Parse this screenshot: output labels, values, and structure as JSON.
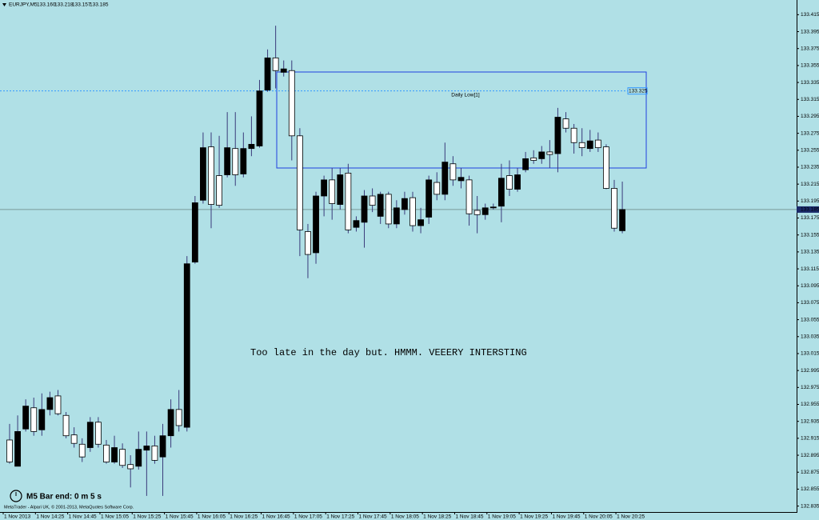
{
  "chart_data": {
    "type": "candlestick",
    "symbol": "EURJPY,M5",
    "header_values": [
      "133.160",
      "133.218",
      "133.157",
      "133.185"
    ],
    "background": "#b0e0e6",
    "bull_color": "#000000",
    "bear_color": "#ffffff",
    "wick_color": "#3a3a7a",
    "categories": [
      "1 Nov 2013",
      null,
      null,
      null,
      "1 Nov 14:25",
      null,
      null,
      null,
      "1 Nov 14:45",
      null,
      null,
      null,
      "1 Nov 15:05",
      null,
      null,
      null,
      "1 Nov 15:25",
      null,
      null,
      null,
      "1 Nov 15:45",
      null,
      null,
      null,
      "1 Nov 16:05",
      null,
      null,
      null,
      "1 Nov 16:25",
      null,
      null,
      null,
      "1 Nov 16:45",
      null,
      null,
      null,
      "1 Nov 17:05",
      null,
      null,
      null,
      "1 Nov 17:25",
      null,
      null,
      null,
      "1 Nov 17:45",
      null,
      null,
      null,
      "1 Nov 18:05",
      null,
      null,
      null,
      "1 Nov 18:25",
      null,
      null,
      null,
      "1 Nov 18:45",
      null,
      null,
      null,
      "1 Nov 19:05",
      null,
      null,
      null,
      "1 Nov 19:25",
      null,
      null,
      null,
      "1 Nov 19:45",
      null,
      null,
      null,
      "1 Nov 20:05",
      null,
      null,
      null,
      "1 Nov 20:25"
    ],
    "open": [
      132.913,
      132.882,
      132.926,
      132.951,
      132.925,
      132.949,
      132.965,
      132.942,
      132.919,
      132.908,
      132.904,
      132.934,
      132.907,
      132.887,
      132.902,
      132.884,
      132.882,
      132.901,
      132.906,
      132.893,
      132.918,
      132.949,
      132.928,
      133.123,
      133.196,
      133.259,
      133.225,
      133.226,
      133.257,
      133.227,
      133.257,
      133.26,
      133.326,
      133.364,
      133.347,
      133.349,
      133.272,
      133.159,
      133.134,
      133.201,
      133.22,
      133.191,
      133.228,
      133.164,
      133.17,
      133.201,
      133.177,
      133.203,
      133.168,
      133.185,
      133.199,
      133.166,
      133.176,
      133.217,
      133.203,
      133.239,
      133.219,
      133.22,
      133.184,
      133.179,
      133.187,
      133.189,
      133.225,
      133.209,
      133.232,
      133.246,
      133.245,
      133.253,
      133.251,
      133.292,
      133.281,
      133.264,
      133.257,
      133.267,
      133.259,
      133.21,
      133.16
    ],
    "high": [
      132.932,
      132.942,
      132.961,
      132.963,
      132.968,
      132.97,
      132.972,
      132.946,
      132.928,
      132.915,
      132.94,
      132.94,
      132.913,
      132.918,
      132.909,
      132.895,
      132.923,
      132.923,
      132.918,
      132.932,
      132.961,
      132.972,
      133.13,
      133.201,
      133.276,
      133.276,
      133.272,
      133.3,
      133.3,
      133.276,
      133.295,
      133.338,
      133.374,
      133.402,
      133.361,
      133.361,
      133.281,
      133.168,
      133.206,
      133.225,
      133.234,
      133.234,
      133.239,
      133.177,
      133.208,
      133.21,
      133.206,
      133.206,
      133.196,
      133.206,
      133.206,
      133.187,
      133.225,
      133.229,
      133.264,
      133.248,
      133.234,
      133.225,
      133.201,
      133.192,
      133.192,
      133.239,
      133.243,
      133.234,
      133.253,
      133.255,
      133.26,
      133.267,
      133.305,
      133.3,
      133.286,
      133.281,
      133.279,
      133.276,
      133.262,
      133.22,
      133.218
    ],
    "low": [
      132.885,
      132.882,
      132.923,
      132.918,
      132.918,
      132.942,
      132.942,
      132.915,
      132.904,
      132.887,
      132.899,
      132.904,
      132.885,
      132.885,
      132.88,
      132.857,
      132.878,
      132.847,
      132.885,
      132.847,
      132.904,
      132.923,
      132.923,
      133.121,
      133.192,
      133.163,
      133.187,
      133.223,
      133.213,
      133.223,
      133.248,
      133.258,
      133.324,
      133.328,
      133.342,
      133.243,
      133.13,
      133.104,
      133.121,
      133.177,
      133.173,
      133.185,
      133.157,
      133.159,
      133.14,
      133.182,
      133.168,
      133.163,
      133.163,
      133.179,
      133.159,
      133.157,
      133.168,
      133.196,
      133.196,
      133.213,
      133.21,
      133.166,
      133.157,
      133.173,
      133.185,
      133.17,
      133.201,
      133.206,
      133.229,
      133.239,
      133.239,
      133.234,
      133.229,
      133.276,
      133.251,
      133.248,
      133.253,
      133.253,
      133.209,
      133.159,
      133.157
    ],
    "close": [
      132.887,
      132.923,
      132.953,
      132.923,
      132.949,
      132.963,
      132.944,
      132.918,
      132.909,
      132.893,
      132.934,
      132.908,
      132.887,
      132.904,
      132.883,
      132.879,
      132.902,
      132.906,
      132.889,
      132.918,
      132.949,
      132.93,
      133.121,
      133.193,
      133.258,
      133.191,
      133.19,
      133.258,
      133.226,
      133.257,
      133.262,
      133.325,
      133.364,
      133.349,
      133.351,
      133.272,
      133.161,
      133.132,
      133.201,
      133.22,
      133.192,
      133.226,
      133.161,
      133.172,
      133.201,
      133.19,
      133.203,
      133.168,
      133.187,
      133.198,
      133.166,
      133.173,
      133.22,
      133.203,
      133.241,
      133.22,
      133.223,
      133.18,
      133.179,
      133.187,
      133.188,
      133.222,
      133.209,
      133.226,
      133.245,
      133.243,
      133.253,
      133.25,
      133.294,
      133.281,
      133.264,
      133.258,
      133.266,
      133.258,
      133.21,
      133.163,
      133.185
    ],
    "ylim": [
      132.828,
      133.421
    ],
    "yticks": [
      133.415,
      133.395,
      133.375,
      133.355,
      133.335,
      133.315,
      133.295,
      133.275,
      133.255,
      133.235,
      133.215,
      133.195,
      133.175,
      133.155,
      133.135,
      133.115,
      133.095,
      133.075,
      133.055,
      133.035,
      133.015,
      132.995,
      132.975,
      132.955,
      132.935,
      132.915,
      132.895,
      132.875,
      132.855,
      132.835
    ],
    "reference_line": {
      "label": "Daily Low[1]",
      "value": 133.325,
      "color": "#3399ff"
    },
    "annotation": "Too late in the day but. HMMM. VEEERY INTERSTING",
    "bar_timer": "M5 Bar end: 0 m 5 s",
    "copyright": "MetaTrader - Alpari UK, © 2001-2013, MetaQuotes Software Corp."
  }
}
